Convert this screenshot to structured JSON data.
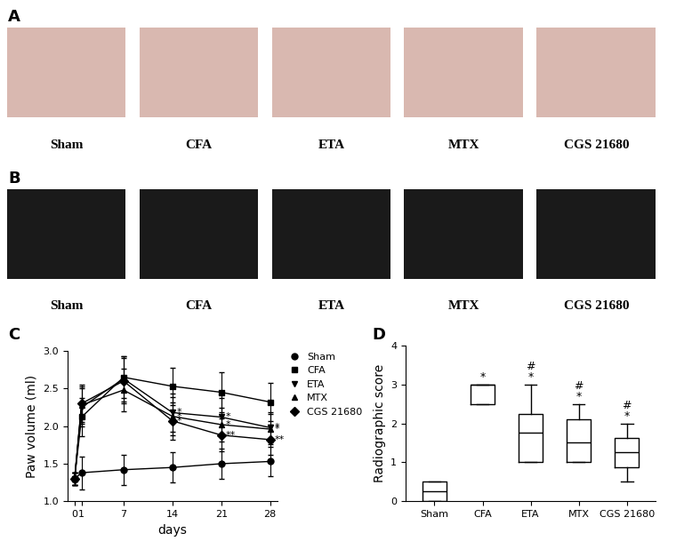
{
  "photo_panels": [
    {
      "panel": "A",
      "captions": [
        "Sham",
        "CFA",
        "ETA",
        "MTX",
        "CGS 21680"
      ],
      "color": "#d9b8b0"
    },
    {
      "panel": "B",
      "captions": [
        "Sham",
        "CFA",
        "ETA",
        "MTX",
        "CGS 21680"
      ],
      "color": "#1a1a1a"
    }
  ],
  "chart_data": [
    {
      "panel": "C",
      "type": "line",
      "x": [
        0,
        1,
        7,
        14,
        21,
        28
      ],
      "xlim": [
        -1,
        29
      ],
      "xticks": [
        0,
        1,
        7,
        14,
        21,
        28
      ],
      "ylim": [
        1.0,
        3.0
      ],
      "yticks": [
        {
          "value": 1.0,
          "label": "1.0"
        },
        {
          "value": 1.5,
          "label": "1.5"
        },
        {
          "value": 2.0,
          "label": "2.0"
        },
        {
          "value": 2.5,
          "label": "2.5"
        },
        {
          "value": 3.0,
          "label": "3.0"
        }
      ],
      "x_label": "days",
      "y_label": "Paw volume (ml)",
      "legend": "upper right",
      "series": [
        {
          "name": "Sham",
          "color": "#000000",
          "marker": "o",
          "values": [
            1.3,
            1.38,
            1.42,
            1.45,
            1.5,
            1.53
          ],
          "errors": [
            0.08,
            0.22,
            0.2,
            0.2,
            0.2,
            0.2
          ],
          "significance": [
            null,
            null,
            null,
            null,
            null,
            null
          ]
        },
        {
          "name": "CFA",
          "color": "#000000",
          "marker": "s",
          "values": [
            1.3,
            2.12,
            2.65,
            2.53,
            2.45,
            2.32
          ],
          "errors": [
            0.08,
            0.25,
            0.28,
            0.25,
            0.27,
            0.25
          ],
          "significance": [
            null,
            null,
            null,
            null,
            null,
            null
          ]
        },
        {
          "name": "ETA",
          "color": "#000000",
          "marker": "v",
          "values": [
            1.3,
            2.25,
            2.63,
            2.18,
            2.12,
            1.98
          ],
          "errors": [
            0.08,
            0.25,
            0.3,
            0.25,
            0.25,
            0.2
          ],
          "significance": [
            null,
            null,
            null,
            "*",
            "*",
            "*"
          ]
        },
        {
          "name": "MTX",
          "color": "#000000",
          "marker": "^",
          "values": [
            1.3,
            2.28,
            2.48,
            2.13,
            2.02,
            1.96
          ],
          "errors": [
            0.08,
            0.25,
            0.28,
            0.25,
            0.22,
            0.2
          ],
          "significance": [
            null,
            null,
            null,
            "*",
            "*",
            "*"
          ]
        },
        {
          "name": "CGS 21680",
          "color": "#000000",
          "marker": "D",
          "values": [
            1.3,
            2.3,
            2.6,
            2.07,
            1.88,
            1.82
          ],
          "errors": [
            0.08,
            0.25,
            0.3,
            0.25,
            0.22,
            0.2
          ],
          "significance": [
            null,
            null,
            null,
            "*",
            "**",
            "**"
          ]
        }
      ]
    },
    {
      "panel": "D",
      "type": "box",
      "categories": [
        "Sham",
        "CFA",
        "ETA",
        "MTX",
        "CGS 21680"
      ],
      "min": [
        0.0,
        2.5,
        1.0,
        1.0,
        0.5
      ],
      "q1": [
        0.0,
        2.5,
        1.0,
        1.0,
        0.88
      ],
      "median": [
        0.25,
        3.0,
        1.75,
        1.5,
        1.25
      ],
      "q3": [
        0.5,
        3.0,
        2.25,
        2.1,
        1.62
      ],
      "max": [
        0.5,
        3.0,
        3.0,
        2.5,
        2.0
      ],
      "significance": [
        null,
        "*",
        "#\n*",
        "#\n*",
        "#\n*"
      ],
      "color": "#000000",
      "ylim": [
        0,
        4
      ],
      "yticks": [
        0,
        1,
        2,
        3,
        4
      ],
      "y_label": "Radiographic score"
    }
  ]
}
